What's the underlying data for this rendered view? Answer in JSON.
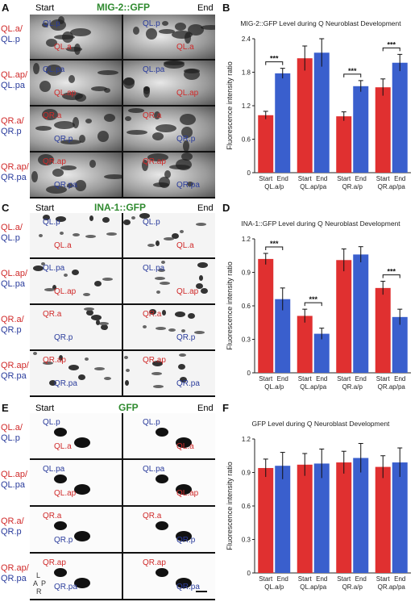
{
  "panels": {
    "A": {
      "letter": "A",
      "start": "Start",
      "end": "End",
      "title": "MIG-2::GFP",
      "rows": [
        {
          "top": "QL.a/",
          "bottom": "QL.p",
          "s1": "QL.p",
          "s2": "QL.a",
          "e1": "QL.p",
          "e2": "QL.a"
        },
        {
          "top": "QL.ap/",
          "bottom": "QL.pa",
          "s1": "QL.pa",
          "s2": "QL.ap",
          "e1": "QL.pa",
          "e2": "QL.ap"
        },
        {
          "top": "QR.a/",
          "bottom": "QR.p",
          "s1": "QR.a",
          "s2": "QR.p",
          "e1": "QR.a",
          "e2": "QR.p"
        },
        {
          "top": "QR.ap/",
          "bottom": "QR.pa",
          "s1": "QR.ap",
          "s2": "QR.pa",
          "e1": "QR.ap",
          "e2": "QR.pa"
        }
      ]
    },
    "C": {
      "letter": "C",
      "start": "Start",
      "end": "End",
      "title": "INA-1::GFP",
      "rows": [
        {
          "top": "QL.a/",
          "bottom": "QL.p",
          "s1": "QL.p",
          "s2": "QL.a",
          "e1": "QL.p",
          "e2": "QL.a"
        },
        {
          "top": "QL.ap/",
          "bottom": "QL.pa",
          "s1": "QL.pa",
          "s2": "QL.ap",
          "e1": "QL.pa",
          "e2": "QL.ap"
        },
        {
          "top": "QR.a/",
          "bottom": "QR.p",
          "s1": "QR.a",
          "s2": "QR.p",
          "e1": "QR.a",
          "e2": "QR.p"
        },
        {
          "top": "QR.ap/",
          "bottom": "QR.pa",
          "s1": "QR.ap",
          "s2": "QR.pa",
          "e1": "QR.ap",
          "e2": "QR.pa"
        }
      ]
    },
    "E": {
      "letter": "E",
      "start": "Start",
      "end": "End",
      "title": "GFP",
      "rows": [
        {
          "top": "QL.a/",
          "bottom": "QL.p",
          "s1": "QL.p",
          "s2": "QL.a",
          "e1": "QL.p",
          "e2": "QL.a"
        },
        {
          "top": "QL.ap/",
          "bottom": "QL.pa",
          "s1": "QL.pa",
          "s2": "QL.ap",
          "e1": "QL.pa",
          "e2": "QL.ap"
        },
        {
          "top": "QR.a/",
          "bottom": "QR.p",
          "s1": "QR.a",
          "s2": "QR.p",
          "e1": "QR.a",
          "e2": "QR.p"
        },
        {
          "top": "QR.ap/",
          "bottom": "QR.pa",
          "s1": "QR.ap",
          "s2": "QR.pa",
          "e1": "QR.ap",
          "e2": "QR.pa"
        }
      ],
      "orientation": {
        "l": "L",
        "a": "A",
        "p": "P",
        "r": "R"
      }
    }
  },
  "chart_data": [
    {
      "panel": "B",
      "type": "bar",
      "title": "MIG-2::GFP Level during Q Neuroblast Development",
      "ylabel": "Fluorescence intensity ratio",
      "ylim": [
        0,
        2.4
      ],
      "yticks": [
        "0",
        "0.6",
        "1.2",
        "1.8",
        "2.4"
      ],
      "categories": [
        "QL.a/p",
        "QL.ap/pa",
        "QR.a/p",
        "QR.ap/pa"
      ],
      "sub": [
        "Start",
        "End"
      ],
      "series": [
        {
          "name": "Start",
          "color": "#e03030",
          "values": [
            1.03,
            2.05,
            1.01,
            1.53
          ],
          "err": [
            0.07,
            0.22,
            0.08,
            0.15
          ]
        },
        {
          "name": "End",
          "color": "#3a5fcd",
          "values": [
            1.78,
            2.15,
            1.55,
            1.97
          ],
          "err": [
            0.09,
            0.25,
            0.1,
            0.15
          ]
        }
      ],
      "sig": [
        "***",
        "",
        "***",
        "***"
      ]
    },
    {
      "panel": "D",
      "type": "bar",
      "title": "INA-1::GFP Level during Q Neuroblast Development",
      "ylabel": "Fluorescence intensity ratio",
      "ylim": [
        0,
        1.2
      ],
      "yticks": [
        "0",
        "0.3",
        "0.6",
        "0.9",
        "1.2"
      ],
      "categories": [
        "QL.a/p",
        "QL.ap/pa",
        "QR.a/p",
        "QR.ap/pa"
      ],
      "sub": [
        "Start",
        "End"
      ],
      "series": [
        {
          "name": "Start",
          "color": "#e03030",
          "values": [
            1.02,
            0.51,
            1.01,
            0.76
          ],
          "err": [
            0.05,
            0.06,
            0.1,
            0.06
          ]
        },
        {
          "name": "End",
          "color": "#3a5fcd",
          "values": [
            0.66,
            0.35,
            1.06,
            0.5
          ],
          "err": [
            0.1,
            0.05,
            0.07,
            0.07
          ]
        }
      ],
      "sig": [
        "***",
        "***",
        "",
        "***"
      ]
    },
    {
      "panel": "F",
      "type": "bar",
      "title": "GFP Level during Q Neuroblast Development",
      "ylabel": "Fluorescence intensity ratio",
      "ylim": [
        0,
        1.2
      ],
      "yticks": [
        "0",
        "0.3",
        "0.6",
        "0.9",
        "1.2"
      ],
      "categories": [
        "QL.a/p",
        "QL.ap/pa",
        "QR.a/p",
        "QR.ap/pa"
      ],
      "sub": [
        "Start",
        "End"
      ],
      "series": [
        {
          "name": "Start",
          "color": "#e03030",
          "values": [
            0.94,
            0.97,
            0.99,
            0.95
          ],
          "err": [
            0.08,
            0.1,
            0.1,
            0.1
          ]
        },
        {
          "name": "End",
          "color": "#3a5fcd",
          "values": [
            0.96,
            0.98,
            1.03,
            0.99
          ],
          "err": [
            0.12,
            0.13,
            0.13,
            0.13
          ]
        }
      ],
      "sig": [
        "",
        "",
        "",
        ""
      ]
    }
  ]
}
